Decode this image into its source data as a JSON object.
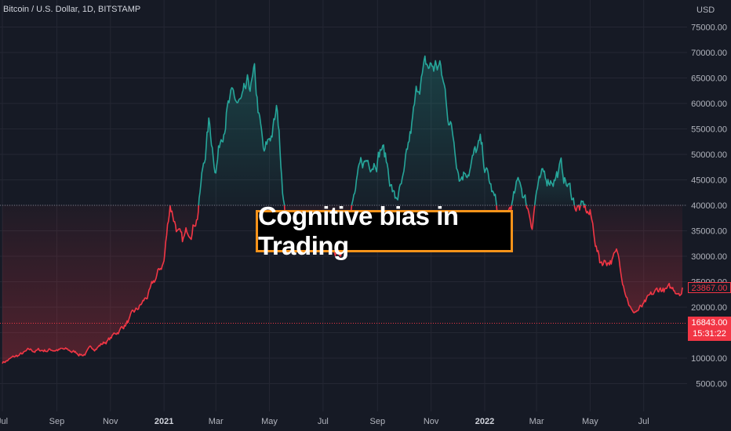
{
  "symbol_title": "Bitcoin / U.S. Dollar, 1D, BITSTAMP",
  "banner_text": "Cognitive bias in Trading",
  "current_price_label": "23867.00",
  "baseline_price_label": "16843.00",
  "countdown_label": "15:31:22",
  "colors": {
    "up": "#26a69a",
    "down": "#f23645",
    "banner_border": "#f7931a",
    "background": "#161a25"
  },
  "chart_data": {
    "type": "line",
    "title": "Bitcoin / U.S. Dollar, 1D, BITSTAMP",
    "ylabel": "USD",
    "ylim": [
      0,
      78000
    ],
    "baseline": 40000,
    "reference_level": 16843,
    "current_price": 23867,
    "grid": true,
    "y_ticks": [
      "5000.00",
      "10000.00",
      "15000.00",
      "20000.00",
      "25000.00",
      "30000.00",
      "35000.00",
      "40000.00",
      "45000.00",
      "50000.00",
      "55000.00",
      "60000.00",
      "65000.00",
      "70000.00",
      "75000.00"
    ],
    "x_ticks": [
      {
        "label": "Jul",
        "date": "2020-07-01"
      },
      {
        "label": "Sep",
        "date": "2020-09-01"
      },
      {
        "label": "Nov",
        "date": "2020-11-01"
      },
      {
        "label": "2021",
        "date": "2021-01-01",
        "bold": true
      },
      {
        "label": "Mar",
        "date": "2021-03-01"
      },
      {
        "label": "May",
        "date": "2021-05-01"
      },
      {
        "label": "Jul",
        "date": "2021-07-01"
      },
      {
        "label": "Sep",
        "date": "2021-09-01"
      },
      {
        "label": "Nov",
        "date": "2021-11-01"
      },
      {
        "label": "2022",
        "date": "2022-01-01",
        "bold": true
      },
      {
        "label": "Mar",
        "date": "2022-03-01"
      },
      {
        "label": "May",
        "date": "2022-05-01"
      },
      {
        "label": "Jul",
        "date": "2022-07-01"
      }
    ],
    "x": [
      "2020-07-01",
      "2020-08-01",
      "2020-09-01",
      "2020-10-01",
      "2020-11-01",
      "2020-12-01",
      "2020-12-17",
      "2021-01-01",
      "2021-01-08",
      "2021-01-22",
      "2021-02-08",
      "2021-02-21",
      "2021-03-01",
      "2021-03-13",
      "2021-04-01",
      "2021-04-14",
      "2021-04-25",
      "2021-05-10",
      "2021-05-19",
      "2021-06-01",
      "2021-06-22",
      "2021-07-01",
      "2021-07-20",
      "2021-08-01",
      "2021-08-14",
      "2021-09-06",
      "2021-09-21",
      "2021-10-01",
      "2021-10-20",
      "2021-11-10",
      "2021-12-04",
      "2021-12-27",
      "2022-01-01",
      "2022-01-22",
      "2022-02-10",
      "2022-02-24",
      "2022-03-01",
      "2022-03-28",
      "2022-04-15",
      "2022-05-01",
      "2022-05-12",
      "2022-06-01",
      "2022-06-18",
      "2022-07-01",
      "2022-07-20",
      "2022-08-01",
      "2022-08-14"
    ],
    "series": [
      {
        "values": [
          9200,
          11300,
          11800,
          10800,
          13800,
          19000,
          23000,
          29000,
          40500,
          32000,
          39000,
          56000,
          48000,
          60500,
          58800,
          63500,
          48500,
          58000,
          38000,
          36500,
          31000,
          33500,
          30000,
          39500,
          47000,
          52500,
          41000,
          44000,
          65500,
          67500,
          47000,
          51000,
          47200,
          35000,
          44500,
          37000,
          43500,
          47300,
          40000,
          38000,
          29000,
          30000,
          19000,
          20000,
          23500,
          23000,
          23867
        ]
      }
    ]
  }
}
